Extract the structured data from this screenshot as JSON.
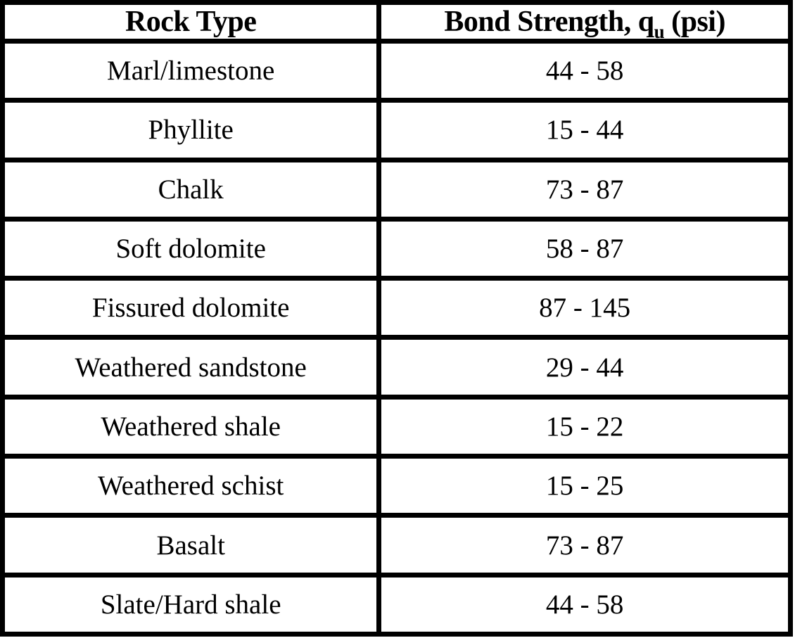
{
  "table": {
    "header": {
      "col1": "Rock Type",
      "col2_prefix": "Bond Strength, q",
      "col2_subscript": "u",
      "col2_suffix": " (psi)"
    },
    "rows": [
      {
        "rock_type": "Marl/limestone",
        "bond_strength": "44 - 58"
      },
      {
        "rock_type": "Phyllite",
        "bond_strength": "15 - 44"
      },
      {
        "rock_type": "Chalk",
        "bond_strength": "73 - 87"
      },
      {
        "rock_type": "Soft dolomite",
        "bond_strength": "58 - 87"
      },
      {
        "rock_type": "Fissured dolomite",
        "bond_strength": "87 - 145"
      },
      {
        "rock_type": "Weathered sandstone",
        "bond_strength": "29 - 44"
      },
      {
        "rock_type": "Weathered shale",
        "bond_strength": "15 - 22"
      },
      {
        "rock_type": "Weathered schist",
        "bond_strength": "15 - 25"
      },
      {
        "rock_type": "Basalt",
        "bond_strength": "73 - 87"
      },
      {
        "rock_type": "Slate/Hard shale",
        "bond_strength": "44 - 58"
      }
    ],
    "colors": {
      "border": "#000000",
      "text": "#000000",
      "background": "#ffffff"
    }
  },
  "chart_data": {
    "type": "table",
    "title": "",
    "columns": [
      "Rock Type",
      "Bond Strength, qu (psi)"
    ],
    "rows": [
      [
        "Marl/limestone",
        "44 - 58"
      ],
      [
        "Phyllite",
        "15 - 44"
      ],
      [
        "Chalk",
        "73 - 87"
      ],
      [
        "Soft dolomite",
        "58 - 87"
      ],
      [
        "Fissured dolomite",
        "87 - 145"
      ],
      [
        "Weathered sandstone",
        "29 - 44"
      ],
      [
        "Weathered shale",
        "15 - 22"
      ],
      [
        "Weathered schist",
        "15 - 25"
      ],
      [
        "Basalt",
        "73 - 87"
      ],
      [
        "Slate/Hard shale",
        "44 - 58"
      ]
    ],
    "ranges_psi": [
      {
        "rock": "Marl/limestone",
        "min": 44,
        "max": 58
      },
      {
        "rock": "Phyllite",
        "min": 15,
        "max": 44
      },
      {
        "rock": "Chalk",
        "min": 73,
        "max": 87
      },
      {
        "rock": "Soft dolomite",
        "min": 58,
        "max": 87
      },
      {
        "rock": "Fissured dolomite",
        "min": 87,
        "max": 145
      },
      {
        "rock": "Weathered sandstone",
        "min": 29,
        "max": 44
      },
      {
        "rock": "Weathered shale",
        "min": 15,
        "max": 22
      },
      {
        "rock": "Weathered schist",
        "min": 15,
        "max": 25
      },
      {
        "rock": "Basalt",
        "min": 73,
        "max": 87
      },
      {
        "rock": "Slate/Hard shale",
        "min": 44,
        "max": 58
      }
    ]
  }
}
